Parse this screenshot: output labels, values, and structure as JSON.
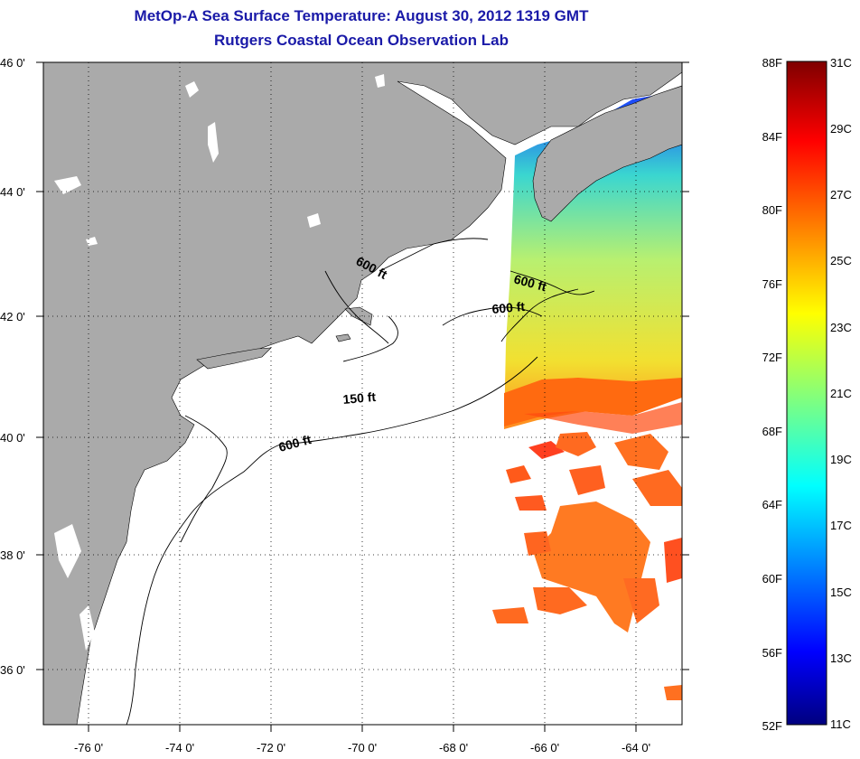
{
  "title": "MetOp-A Sea Surface Temperature:  August 30, 2012 1319 GMT",
  "subtitle": "Rutgers Coastal Ocean Observation Lab",
  "colors": {
    "land": "#aaaaaa",
    "water": "#ffffff",
    "title": "#1a1aa8"
  },
  "map": {
    "lat_labels": [
      "46 0'",
      "44 0'",
      "42 0'",
      "40 0'",
      "38 0'",
      "36 0'"
    ],
    "lon_labels": [
      "-76 0'",
      "-74 0'",
      "-72 0'",
      "-70 0'",
      "-68 0'",
      "-66 0'",
      "-64 0'"
    ],
    "lat_range": [
      35,
      46
    ],
    "lon_range": [
      -77,
      -63
    ],
    "contour_labels": [
      "600 ft",
      "600 ft",
      "600 ft",
      "150 ft",
      "600 ft"
    ]
  },
  "colorbar": {
    "f_labels": [
      "88F",
      "84F",
      "80F",
      "76F",
      "72F",
      "68F",
      "64F",
      "60F",
      "56F",
      "52F"
    ],
    "c_labels": [
      "31C",
      "29C",
      "27C",
      "25C",
      "23C",
      "21C",
      "19C",
      "17C",
      "15C",
      "13C",
      "11C"
    ]
  }
}
